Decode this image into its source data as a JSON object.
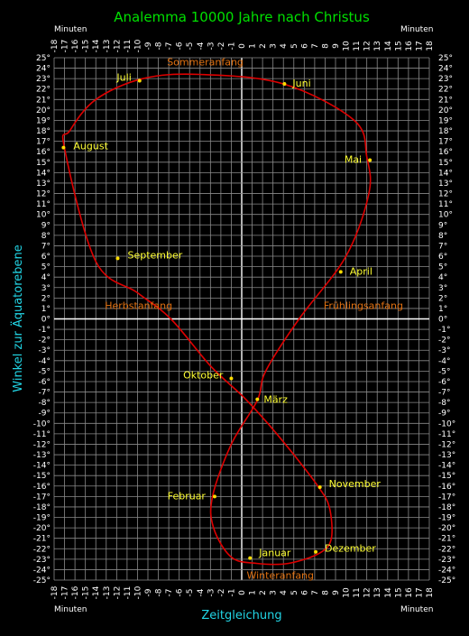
{
  "chart_data": {
    "type": "line",
    "title": "Analemma  10000 Jahre nach Christus",
    "xlabel": "Zeitgleichung",
    "ylabel": "Winkel zur Äquatorebene",
    "x_unit_label": "Minuten",
    "xlim": [
      -18,
      18
    ],
    "ylim": [
      -25,
      25
    ],
    "grid": true,
    "colors": {
      "curve": "#dd0000",
      "points": "#ffdd00",
      "months": "#ffff33",
      "events": "#e07010",
      "title": "#00e000",
      "axis_title": "#22d6e6",
      "grid": "#8a8a8a"
    },
    "series": [
      {
        "x": [
          2.3,
          5.5,
          10.0,
          12.2,
          12.0,
          10.8,
          4.0,
          -4.0,
          -9.5,
          -14.0,
          -16.5,
          -17.0,
          -14.0,
          -10.0,
          -6.8,
          -3.0,
          0.2,
          2.5,
          5.0,
          7.3,
          8.4,
          8.6,
          7.5,
          4.5,
          1.4,
          -1.0,
          -2.7,
          -2.8,
          -1.0,
          1.5
        ],
        "y": [
          -5.0,
          0.0,
          6.0,
          12.0,
          15.5,
          19.0,
          22.5,
          23.4,
          23.0,
          21.0,
          18.0,
          16.3,
          5.5,
          2.5,
          0.0,
          -4.5,
          -7.5,
          -10.0,
          -13.0,
          -16.0,
          -18.0,
          -21.0,
          -22.4,
          -23.4,
          -23.4,
          -22.8,
          -20.0,
          -17.0,
          -12.0,
          -7.8
        ]
      }
    ],
    "month_points": [
      {
        "label": "März",
        "x": 1.5,
        "y": -7.7
      },
      {
        "label": "April",
        "x": 9.5,
        "y": 4.5
      },
      {
        "label": "Mai",
        "x": 12.3,
        "y": 15.2
      },
      {
        "label": "Juni",
        "x": 4.1,
        "y": 22.5
      },
      {
        "label": "Juli",
        "x": -9.8,
        "y": 22.8
      },
      {
        "label": "August",
        "x": -17.1,
        "y": 16.4
      },
      {
        "label": "September",
        "x": -11.9,
        "y": 5.8
      },
      {
        "label": "Oktober",
        "x": -1.0,
        "y": -5.7
      },
      {
        "label": "November",
        "x": 7.5,
        "y": -16.1
      },
      {
        "label": "Dezember",
        "x": 7.1,
        "y": -22.3
      },
      {
        "label": "Januar",
        "x": 0.8,
        "y": -22.9
      },
      {
        "label": "Februar",
        "x": -2.6,
        "y": -17.0
      }
    ],
    "events": [
      {
        "label": "Sommeranfang",
        "x": -3.5,
        "y": 23.4
      },
      {
        "label": "Frühlingsanfang",
        "x": 7.0,
        "y": 0.6
      },
      {
        "label": "Herbstanfang",
        "x": -7.0,
        "y": 0.6
      },
      {
        "label": "Winteranfang",
        "x": 3.7,
        "y": -23.4
      }
    ]
  }
}
